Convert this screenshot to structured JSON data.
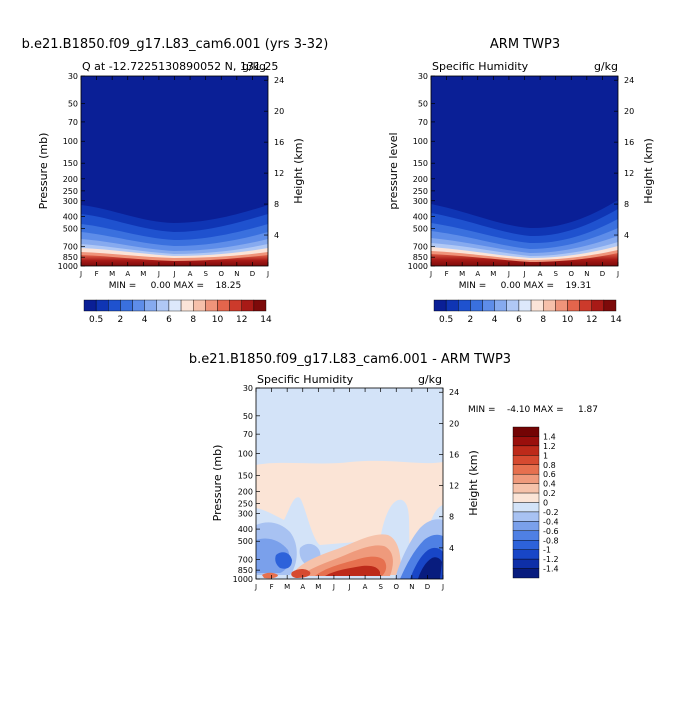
{
  "colors": {
    "q_scale": [
      "#0a1f96",
      "#0f35b4",
      "#1f52cf",
      "#3a70de",
      "#5e8de9",
      "#86aaef",
      "#b0c8f5",
      "#dde8fb",
      "#fbe4d8",
      "#f6c0aa",
      "#ef947a",
      "#e3654c",
      "#cc3a2b",
      "#a81a16",
      "#7d0a0a"
    ],
    "diff_scale": [
      "#081c7e",
      "#0e2fa8",
      "#1846c7",
      "#2d62da",
      "#4f80e4",
      "#7aa0eb",
      "#a8c2f2",
      "#d3e3f8",
      "#fbe4d6",
      "#f6c2aa",
      "#ef9a7c",
      "#e6704f",
      "#d64a30",
      "#bd2a1a",
      "#9a0f0c",
      "#730404"
    ]
  },
  "chart_data": [
    {
      "type": "heatmap",
      "title": "b.e21.B1850.f09_g17.L83_cam6.001 (yrs 3-32)",
      "subtitle_left": "Q at -12.7225130890052 N, 131.25",
      "subtitle_right": "g/kg",
      "ylabel": "Pressure (mb)",
      "ylabel_right": "Height (km)",
      "x_ticks": [
        "J",
        "F",
        "M",
        "A",
        "M",
        "J",
        "J",
        "A",
        "S",
        "O",
        "N",
        "D",
        "J"
      ],
      "y_ticks": [
        30,
        50,
        70,
        100,
        150,
        200,
        250,
        300,
        400,
        500,
        700,
        850,
        1000
      ],
      "y2_ticks": [
        24,
        20,
        16,
        12,
        8,
        4
      ],
      "minmax_text": "MIN =     0.00 MAX =    18.25",
      "colorbar_labels": [
        "0.5",
        "2",
        "4",
        "6",
        "8",
        "10",
        "12",
        "14"
      ],
      "min": 0.0,
      "max": 18.25
    },
    {
      "type": "heatmap",
      "title": "ARM TWP3",
      "subtitle_left": "Specific Humidity",
      "subtitle_right": "g/kg",
      "ylabel": "pressure level",
      "ylabel_right": "Height (km)",
      "x_ticks": [
        "J",
        "F",
        "M",
        "A",
        "M",
        "J",
        "J",
        "A",
        "S",
        "O",
        "N",
        "D",
        "J"
      ],
      "y_ticks": [
        30,
        50,
        70,
        100,
        150,
        200,
        250,
        300,
        400,
        500,
        700,
        850,
        1000
      ],
      "y2_ticks": [
        24,
        20,
        16,
        12,
        8,
        4
      ],
      "minmax_text": "MIN =     0.00 MAX =    19.31",
      "colorbar_labels": [
        "0.5",
        "2",
        "4",
        "6",
        "8",
        "10",
        "12",
        "14"
      ],
      "min": 0.0,
      "max": 19.31
    },
    {
      "type": "heatmap",
      "title": "b.e21.B1850.f09_g17.L83_cam6.001 - ARM TWP3",
      "subtitle_left": "Specific Humidity",
      "subtitle_right": "g/kg",
      "ylabel": "Pressure (mb)",
      "ylabel_right": "Height (km)",
      "x_ticks": [
        "J",
        "F",
        "M",
        "A",
        "M",
        "J",
        "J",
        "A",
        "S",
        "O",
        "N",
        "D",
        "J"
      ],
      "y_ticks": [
        30,
        50,
        70,
        100,
        150,
        200,
        250,
        300,
        400,
        500,
        700,
        850,
        1000
      ],
      "y2_ticks": [
        24,
        20,
        16,
        12,
        8,
        4
      ],
      "minmax_text": "MIN =    -4.10 MAX =     1.87",
      "colorbar_labels": [
        "1.4",
        "1.2",
        "1",
        "0.8",
        "0.6",
        "0.4",
        "0.2",
        "0",
        "-0.2",
        "-0.4",
        "-0.6",
        "-0.8",
        "-1",
        "-1.2",
        "-1.4"
      ],
      "min": -4.1,
      "max": 1.87
    }
  ]
}
